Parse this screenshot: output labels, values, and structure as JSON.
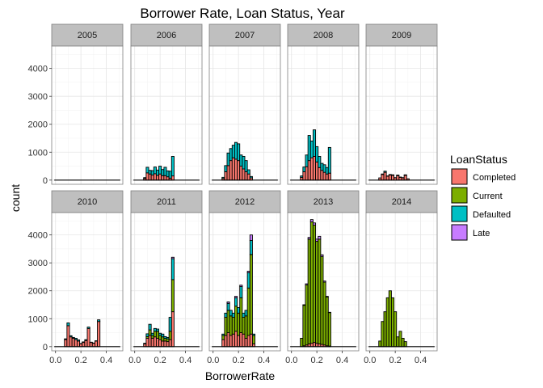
{
  "chart_data": {
    "type": "bar",
    "subtype": "faceted-stacked-histogram",
    "title": "Borrower Rate, Loan Status, Year",
    "xlabel": "BorrowerRate",
    "ylabel": "count",
    "xlim": [
      -0.03,
      0.53
    ],
    "ylim": [
      -150,
      4800
    ],
    "x_ticks": [
      0,
      0.2,
      0.4
    ],
    "x_tick_labels": [
      "0.0",
      "0.2",
      "0.4"
    ],
    "y_ticks": [
      0,
      1000,
      2000,
      3000,
      4000
    ],
    "y_tick_labels": [
      "0",
      "1000",
      "2000",
      "3000",
      "4000"
    ],
    "grid": true,
    "bin_centers": [
      0.0,
      0.02,
      0.04,
      0.06,
      0.08,
      0.1,
      0.12,
      0.14,
      0.16,
      0.18,
      0.2,
      0.22,
      0.24,
      0.26,
      0.28,
      0.3,
      0.32,
      0.34,
      0.36,
      0.38,
      0.4,
      0.42,
      0.44,
      0.46,
      0.48,
      0.5
    ],
    "legend": {
      "title": "LoanStatus",
      "position": "right",
      "entries": [
        {
          "name": "Completed",
          "color": "#F8766D"
        },
        {
          "name": "Current",
          "color": "#7CAE00"
        },
        {
          "name": "Defaulted",
          "color": "#00BFC4"
        },
        {
          "name": "Late",
          "color": "#C77CFF"
        }
      ]
    },
    "stack_order": [
      "Completed",
      "Current",
      "Defaulted",
      "Late"
    ],
    "facets": [
      {
        "year": "2005",
        "series": {
          "Completed": [
            0,
            0,
            0,
            0,
            0,
            0,
            0,
            0,
            0,
            0,
            0,
            0,
            0,
            0,
            0,
            0,
            0,
            0,
            0,
            0,
            0,
            0,
            0,
            0,
            0,
            0
          ]
        }
      },
      {
        "year": "2006",
        "series": {
          "Completed": [
            0,
            0,
            0,
            0,
            60,
            260,
            220,
            180,
            230,
            170,
            220,
            160,
            160,
            120,
            70,
            150,
            0,
            0,
            0,
            0,
            0,
            0,
            0,
            0,
            0,
            0
          ],
          "Defaulted": [
            0,
            0,
            0,
            0,
            30,
            200,
            130,
            160,
            240,
            190,
            280,
            220,
            300,
            210,
            250,
            700,
            0,
            0,
            0,
            0,
            0,
            0,
            0,
            0,
            0,
            0
          ]
        }
      },
      {
        "year": "2007",
        "series": {
          "Completed": [
            0,
            0,
            0,
            0,
            60,
            300,
            520,
            700,
            800,
            750,
            700,
            500,
            400,
            300,
            220,
            80,
            0,
            0,
            0,
            0,
            0,
            0,
            0,
            0,
            0,
            0
          ],
          "Defaulted": [
            0,
            0,
            0,
            0,
            40,
            220,
            450,
            430,
            450,
            600,
            600,
            400,
            450,
            400,
            150,
            50,
            0,
            0,
            0,
            0,
            0,
            0,
            0,
            0,
            0,
            0
          ]
        }
      },
      {
        "year": "2008",
        "series": {
          "Completed": [
            0,
            0,
            0,
            0,
            100,
            300,
            480,
            700,
            800,
            850,
            650,
            450,
            350,
            280,
            220,
            250,
            0,
            0,
            0,
            0,
            0,
            0,
            0,
            0,
            0,
            0
          ],
          "Defaulted": [
            0,
            0,
            0,
            0,
            50,
            170,
            420,
            900,
            600,
            950,
            550,
            400,
            250,
            270,
            230,
            920,
            0,
            0,
            0,
            0,
            0,
            0,
            0,
            0,
            0,
            0
          ]
        }
      },
      {
        "year": "2009",
        "series": {
          "Completed": [
            0,
            0,
            0,
            0,
            80,
            200,
            280,
            140,
            180,
            170,
            80,
            160,
            100,
            80,
            170,
            50,
            0,
            0,
            0,
            0,
            0,
            0,
            0,
            0,
            0,
            0
          ],
          "Defaulted": [
            0,
            0,
            0,
            0,
            0,
            20,
            40,
            10,
            20,
            20,
            10,
            20,
            10,
            10,
            20,
            0,
            0,
            0,
            0,
            0,
            0,
            0,
            0,
            0,
            0,
            0
          ]
        }
      },
      {
        "year": "2010",
        "series": {
          "Completed": [
            0,
            0,
            0,
            0,
            250,
            750,
            350,
            300,
            250,
            200,
            100,
            150,
            220,
            650,
            150,
            120,
            200,
            900,
            0,
            0,
            0,
            0,
            0,
            0,
            0,
            0
          ],
          "Defaulted": [
            0,
            0,
            0,
            0,
            30,
            100,
            40,
            30,
            50,
            40,
            10,
            20,
            30,
            50,
            10,
            10,
            10,
            60,
            0,
            0,
            0,
            0,
            0,
            0,
            0,
            0
          ]
        }
      },
      {
        "year": "2011",
        "series": {
          "Completed": [
            0,
            0,
            0,
            0,
            100,
            300,
            400,
            300,
            350,
            300,
            250,
            200,
            200,
            180,
            250,
            1250,
            0,
            0,
            0,
            0,
            0,
            0,
            0,
            0,
            0,
            0
          ],
          "Current": [
            0,
            0,
            0,
            0,
            20,
            60,
            200,
            100,
            200,
            250,
            150,
            150,
            100,
            100,
            300,
            1150,
            0,
            0,
            0,
            0,
            0,
            0,
            0,
            0,
            0,
            0
          ],
          "Defaulted": [
            0,
            0,
            0,
            0,
            0,
            100,
            200,
            80,
            100,
            80,
            80,
            100,
            60,
            50,
            500,
            750,
            0,
            0,
            0,
            0,
            0,
            0,
            0,
            0,
            0,
            0
          ],
          "Late": [
            0,
            0,
            0,
            0,
            0,
            0,
            0,
            0,
            0,
            0,
            0,
            0,
            0,
            0,
            0,
            50,
            0,
            0,
            0,
            0,
            0,
            0,
            0,
            0,
            0,
            0
          ]
        }
      },
      {
        "year": "2012",
        "series": {
          "Completed": [
            0,
            0,
            0,
            0,
            250,
            400,
            500,
            400,
            450,
            550,
            400,
            500,
            450,
            300,
            400,
            450,
            100,
            0,
            0,
            0,
            0,
            0,
            0,
            0,
            0,
            0
          ],
          "Current": [
            0,
            0,
            0,
            0,
            150,
            650,
            800,
            700,
            600,
            900,
            800,
            1250,
            600,
            800,
            1700,
            2850,
            300,
            0,
            0,
            0,
            0,
            0,
            0,
            0,
            0,
            0
          ],
          "Defaulted": [
            0,
            0,
            0,
            0,
            50,
            150,
            250,
            200,
            150,
            300,
            200,
            400,
            150,
            200,
            550,
            500,
            50,
            0,
            0,
            0,
            0,
            0,
            0,
            0,
            0,
            0
          ],
          "Late": [
            0,
            0,
            0,
            0,
            0,
            0,
            50,
            0,
            0,
            50,
            0,
            50,
            0,
            0,
            50,
            200,
            0,
            0,
            0,
            0,
            0,
            0,
            0,
            0,
            0,
            0
          ]
        }
      },
      {
        "year": "2013",
        "series": {
          "Completed": [
            0,
            0,
            0,
            0,
            0,
            30,
            60,
            100,
            120,
            150,
            120,
            100,
            80,
            60,
            30,
            20,
            0,
            0,
            0,
            0,
            0,
            0,
            0,
            0,
            0,
            0
          ],
          "Current": [
            0,
            0,
            0,
            0,
            300,
            1450,
            2150,
            3750,
            4350,
            4200,
            3650,
            3750,
            3150,
            2250,
            1750,
            1200,
            0,
            0,
            0,
            0,
            0,
            0,
            0,
            0,
            0,
            0
          ],
          "Defaulted": [
            0,
            0,
            0,
            0,
            0,
            0,
            0,
            0,
            0,
            0,
            0,
            0,
            0,
            0,
            0,
            0,
            0,
            0,
            0,
            0,
            0,
            0,
            0,
            0,
            0,
            0
          ],
          "Late": [
            0,
            0,
            0,
            0,
            0,
            20,
            40,
            60,
            80,
            80,
            80,
            100,
            60,
            40,
            20,
            10,
            0,
            0,
            0,
            0,
            0,
            0,
            0,
            0,
            0,
            0
          ]
        }
      },
      {
        "year": "2014",
        "series": {
          "Completed": [
            0,
            0,
            0,
            0,
            0,
            0,
            0,
            0,
            0,
            0,
            0,
            0,
            0,
            0,
            0,
            0,
            0,
            0,
            0,
            0,
            0,
            0,
            0,
            0,
            0,
            0
          ],
          "Current": [
            0,
            0,
            0,
            0,
            200,
            900,
            1250,
            1750,
            2000,
            1750,
            1250,
            350,
            550,
            300,
            180,
            0,
            0,
            0,
            0,
            0,
            0,
            0,
            0,
            0,
            0,
            0
          ],
          "Late": [
            0,
            0,
            0,
            0,
            0,
            0,
            0,
            0,
            0,
            0,
            0,
            0,
            0,
            0,
            0,
            0,
            0,
            0,
            0,
            0,
            0,
            0,
            0,
            0,
            0,
            0
          ]
        }
      }
    ]
  }
}
